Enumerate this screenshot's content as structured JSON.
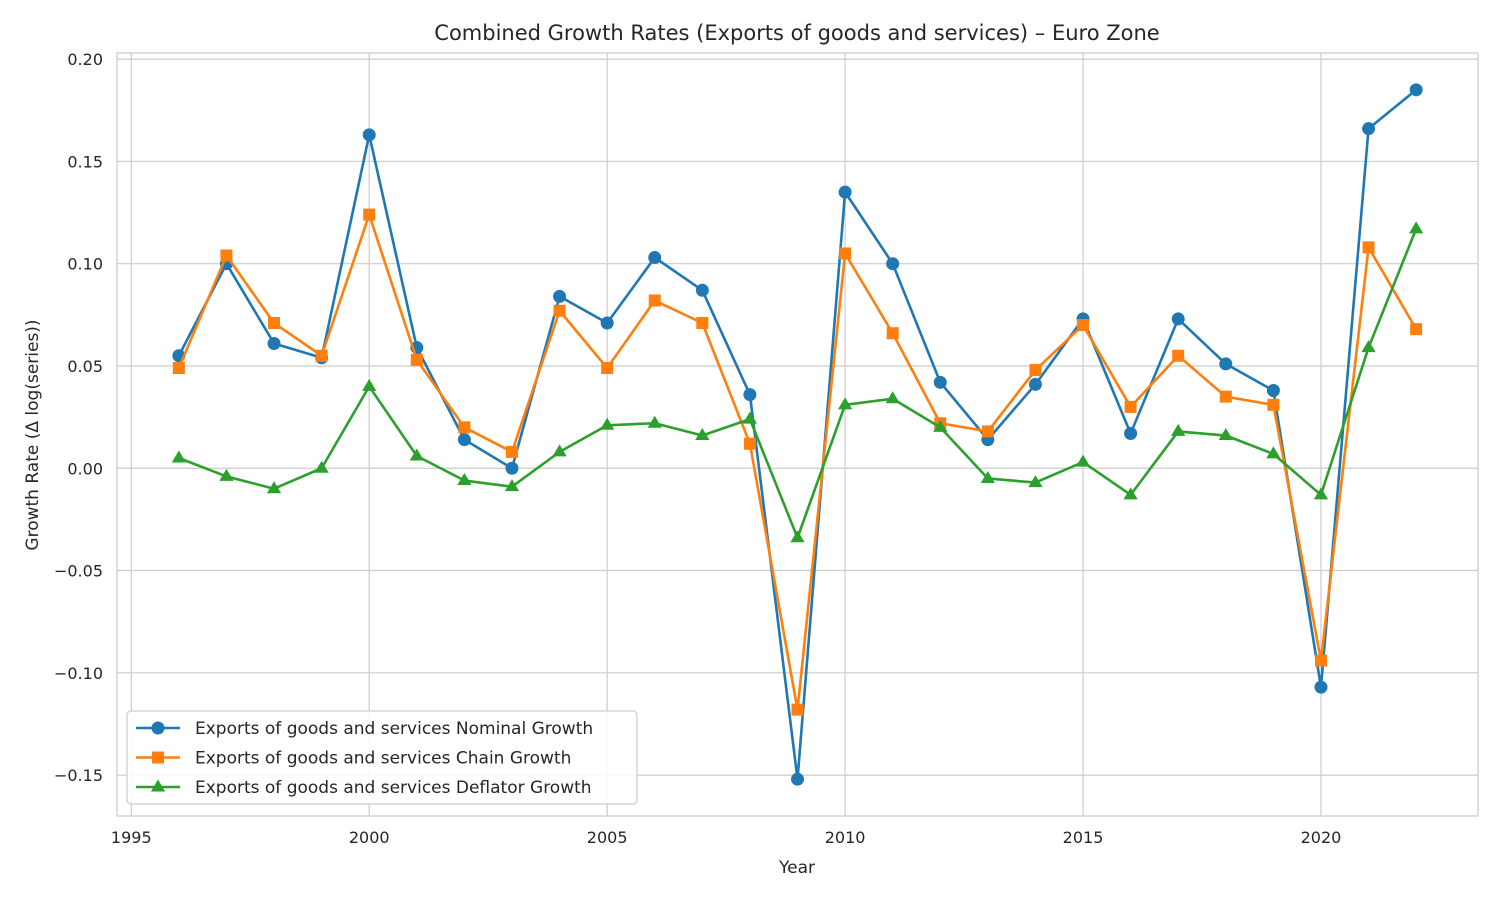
{
  "chart_data": {
    "type": "line",
    "title": "Combined Growth Rates (Exports of goods and services) – Euro Zone",
    "xlabel": "Year",
    "ylabel": "Growth Rate (Δ log(series))",
    "xlim": [
      1994.7,
      2023.3
    ],
    "ylim": [
      -0.17,
      0.203
    ],
    "xticks": [
      1995,
      2000,
      2005,
      2010,
      2015,
      2020
    ],
    "xtick_labels": [
      "1995",
      "2000",
      "2005",
      "2010",
      "2015",
      "2020"
    ],
    "yticks": [
      -0.15,
      -0.1,
      -0.05,
      0.0,
      0.05,
      0.1,
      0.15,
      0.2
    ],
    "ytick_labels": [
      "−0.15",
      "−0.10",
      "−0.05",
      "0.00",
      "0.05",
      "0.10",
      "0.15",
      "0.20"
    ],
    "grid": true,
    "legend_position": "bottom-left",
    "x": [
      1996,
      1997,
      1998,
      1999,
      2000,
      2001,
      2002,
      2003,
      2004,
      2005,
      2006,
      2007,
      2008,
      2009,
      2010,
      2011,
      2012,
      2013,
      2014,
      2015,
      2016,
      2017,
      2018,
      2019,
      2020,
      2021,
      2022
    ],
    "series": [
      {
        "name": "Exports of goods and services Nominal Growth",
        "color": "#1f77b4",
        "marker": "circle",
        "values": [
          0.055,
          0.1,
          0.061,
          0.054,
          0.163,
          0.059,
          0.014,
          0.0,
          0.084,
          0.071,
          0.103,
          0.087,
          0.036,
          -0.152,
          0.135,
          0.1,
          0.042,
          0.014,
          0.041,
          0.073,
          0.017,
          0.073,
          0.051,
          0.038,
          -0.107,
          0.166,
          0.185
        ]
      },
      {
        "name": "Exports of goods and services Chain Growth",
        "color": "#ff7f0e",
        "marker": "square",
        "values": [
          0.049,
          0.104,
          0.071,
          0.055,
          0.124,
          0.053,
          0.02,
          0.008,
          0.077,
          0.049,
          0.082,
          0.071,
          0.012,
          -0.118,
          0.105,
          0.066,
          0.022,
          0.018,
          0.048,
          0.07,
          0.03,
          0.055,
          0.035,
          0.031,
          -0.094,
          0.108,
          0.068
        ]
      },
      {
        "name": "Exports of goods and services Deflator Growth",
        "color": "#2ca02c",
        "marker": "triangle",
        "values": [
          0.005,
          -0.004,
          -0.01,
          0.0,
          0.04,
          0.006,
          -0.006,
          -0.009,
          0.008,
          0.021,
          0.022,
          0.016,
          0.024,
          -0.034,
          0.031,
          0.034,
          0.02,
          -0.005,
          -0.007,
          0.003,
          -0.013,
          0.018,
          0.016,
          0.007,
          -0.013,
          0.059,
          0.117
        ]
      }
    ]
  }
}
